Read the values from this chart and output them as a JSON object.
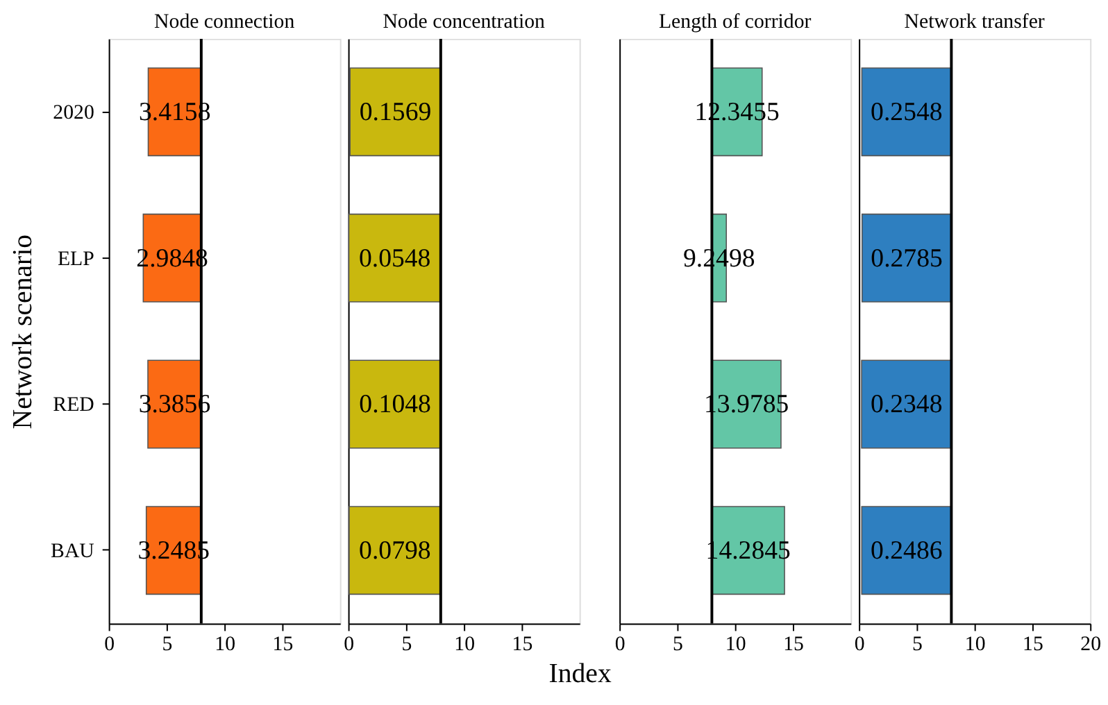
{
  "chart_data": [
    {
      "type": "bar",
      "orientation": "horizontal",
      "title": "Node connection",
      "ylabel": "Network scenario",
      "categories": [
        "2020",
        "ELP",
        "RED",
        "BAU"
      ],
      "base": [
        8,
        8,
        8,
        8
      ],
      "values": [
        -4.5842,
        -5.0152,
        -4.6144,
        -4.7515
      ],
      "value_labels": [
        "3.4158",
        "2.9848",
        "3.3856",
        "3.2485"
      ],
      "color": "#fb6a14",
      "xlim": [
        0,
        20
      ],
      "xticks": [
        0,
        5,
        10,
        15
      ],
      "ref_lines": [
        {
          "axis": "x",
          "value": 8
        }
      ],
      "grid": false
    },
    {
      "type": "bar",
      "orientation": "horizontal",
      "title": "Node concentration",
      "xlabel": "Index",
      "categories": [
        null,
        null,
        null,
        null
      ],
      "base": [
        8,
        8,
        8,
        8
      ],
      "values": [
        -7.8431,
        -7.9452,
        -7.8952,
        -7.9202
      ],
      "value_labels": [
        "0.1569",
        "0.0548",
        "0.1048",
        "0.0798"
      ],
      "color": "#c9b80e",
      "xlim": [
        0,
        20
      ],
      "xticks": [
        0,
        5,
        10,
        15
      ],
      "ref_lines": [
        {
          "axis": "x",
          "value": 8
        }
      ],
      "grid": false,
      "tick_labels": "x"
    },
    {
      "type": "bar",
      "orientation": "horizontal",
      "title": "Length of corridor",
      "categories": [
        null,
        null,
        null,
        null
      ],
      "base": [
        8,
        8,
        8,
        8
      ],
      "values": [
        4.3455,
        1.2498,
        5.9785,
        6.2845
      ],
      "value_labels": [
        "12.3455",
        "9.2498",
        "13.9785",
        "14.2845"
      ],
      "color": "#63c6a6",
      "xlim": [
        0,
        20
      ],
      "xticks": [
        0,
        5,
        10,
        15
      ],
      "ref_lines": [
        {
          "axis": "x",
          "value": 8
        }
      ],
      "grid": false,
      "tick_labels": "x"
    },
    {
      "type": "bar",
      "orientation": "horizontal",
      "title": "Network transfer",
      "categories": [
        null,
        null,
        null,
        null
      ],
      "base": [
        8,
        8,
        8,
        8
      ],
      "values": [
        -7.7452,
        -7.7215,
        -7.7652,
        -7.7514
      ],
      "value_labels": [
        "0.2548",
        "0.2785",
        "0.2348",
        "0.2486"
      ],
      "color": "#2e7fc0",
      "xlim": [
        0,
        20
      ],
      "xticks": [
        0,
        5,
        10,
        15,
        20
      ],
      "ref_lines": [
        {
          "axis": "x",
          "value": 8
        }
      ],
      "grid": false,
      "tick_labels": "x"
    }
  ]
}
